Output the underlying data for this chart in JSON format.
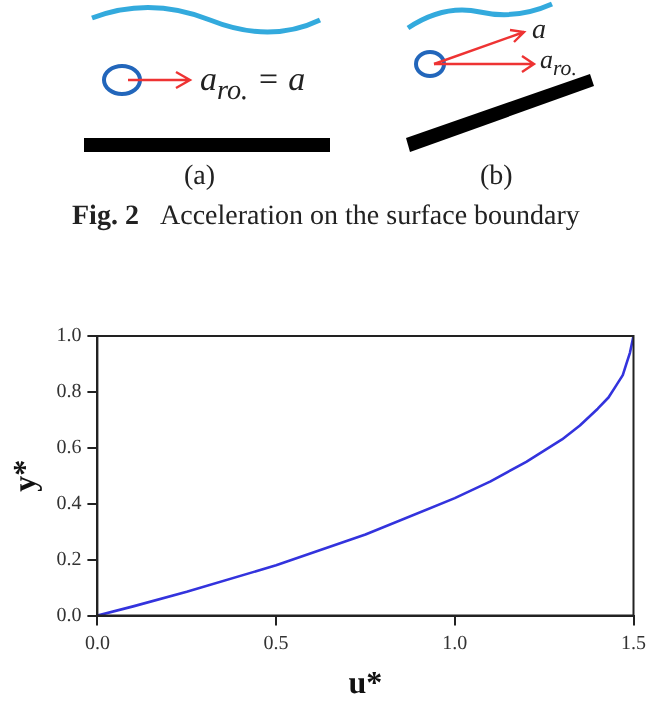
{
  "chart_data": {
    "type": "line",
    "xlabel": "u*",
    "ylabel": "y*",
    "annotations": [
      "a$_{ro.}$ = a",
      "a",
      "a$_{ro.}$",
      "(a)",
      "(b)",
      "Fig. 2",
      "Acceleration on the surface boundary"
    ],
    "x": [
      0,
      0.1,
      0.25,
      0.5,
      0.75,
      1.0,
      1.1,
      1.2,
      1.3,
      1.35,
      1.4,
      1.43,
      1.45,
      1.47,
      1.48,
      1.49,
      1.5
    ],
    "series": [
      {
        "color": "#3333dd",
        "values": [
          0,
          0.033,
          0.085,
          0.18,
          0.29,
          0.42,
          0.48,
          0.55,
          0.63,
          0.68,
          0.74,
          0.78,
          0.82,
          0.86,
          0.9,
          0.94,
          1.0
        ]
      }
    ],
    "xlim": [
      0,
      1.5
    ],
    "xticks": [
      {
        "value": 0,
        "label": "0.0"
      },
      0.5,
      {
        "value": 1,
        "label": "1.0"
      },
      1.5
    ],
    "ylim": [
      0,
      1
    ],
    "yticks": [
      {
        "value": 0,
        "label": "0.0"
      },
      0.2,
      0.4,
      0.6,
      0.8,
      {
        "value": 1,
        "label": "1.0"
      }
    ],
    "grid": false,
    "legend": false,
    "marker": "none",
    "line_style": "solid"
  }
}
